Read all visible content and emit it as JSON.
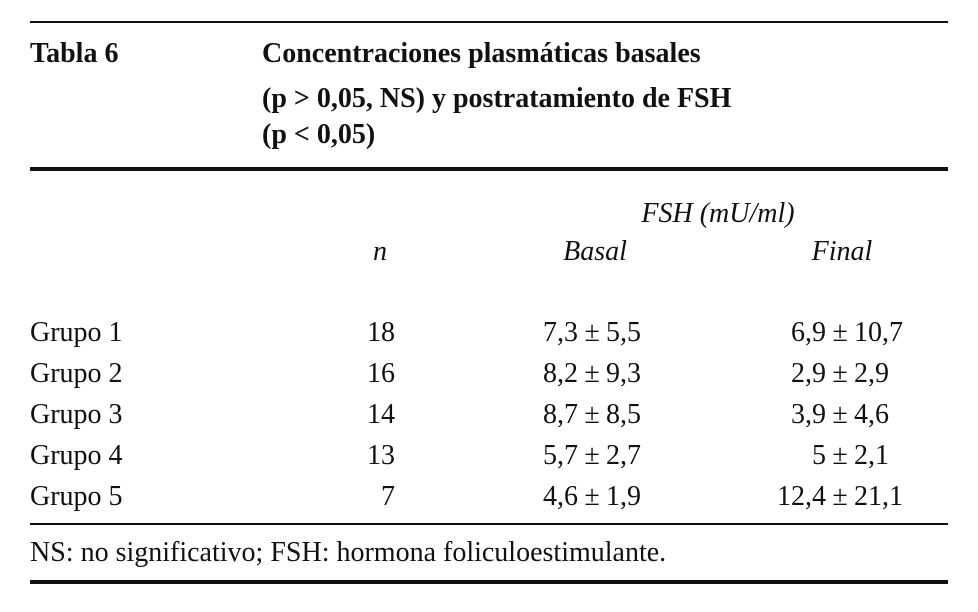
{
  "header": {
    "label": "Tabla 6",
    "title_lines": [
      "Concentraciones plasmáticas basales",
      "(p > 0,05, NS) y postratamiento de FSH",
      "(p < 0,05)"
    ]
  },
  "table": {
    "group_header": "FSH (mU/ml)",
    "columns": [
      "n",
      "Basal",
      "Final"
    ],
    "pm": "±",
    "rows": [
      {
        "label": "Grupo 1",
        "n": 18,
        "basal": [
          "7,3",
          "5,5"
        ],
        "final": [
          "6,9",
          "10,7"
        ]
      },
      {
        "label": "Grupo 2",
        "n": 16,
        "basal": [
          "8,2",
          "9,3"
        ],
        "final": [
          "2,9",
          "2,9"
        ]
      },
      {
        "label": "Grupo 3",
        "n": 14,
        "basal": [
          "8,7",
          "8,5"
        ],
        "final": [
          "3,9",
          "4,6"
        ]
      },
      {
        "label": "Grupo 4",
        "n": 13,
        "basal": [
          "5,7",
          "2,7"
        ],
        "final": [
          "5",
          "2,1"
        ]
      },
      {
        "label": "Grupo 5",
        "n": 7,
        "basal": [
          "4,6",
          "1,9"
        ],
        "final": [
          "12,4",
          "21,1"
        ]
      }
    ]
  },
  "footnote": "NS: no significativo; FSH: hormona foliculoestimulante."
}
